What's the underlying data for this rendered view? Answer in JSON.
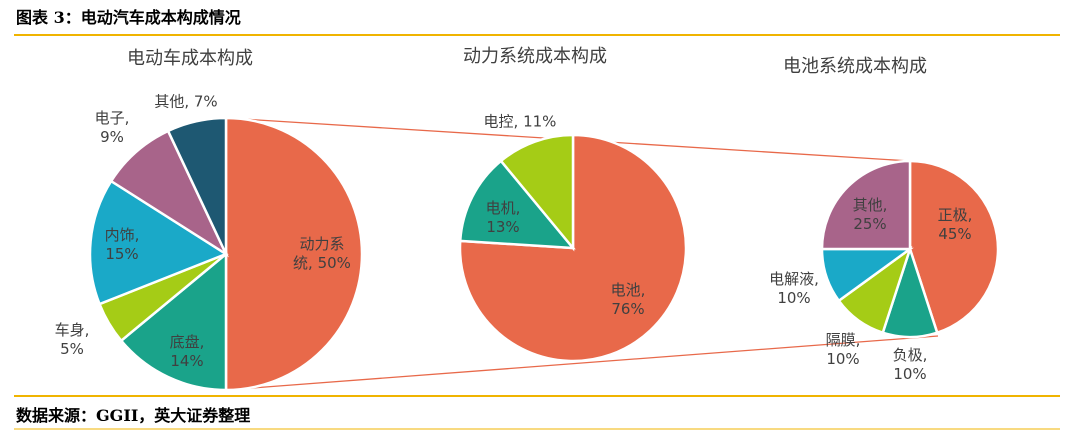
{
  "figure_title": "图表 3：电动汽车成本构成情况",
  "source": "数据来源：GGII，英大证券整理",
  "chart_data": [
    {
      "type": "pie",
      "title": "电动车成本构成",
      "values": [
        50,
        14,
        5,
        15,
        9,
        7
      ],
      "value_labels": [
        "动力系\n统, 50%",
        "底盘,\n14%",
        "车身,\n5%",
        "内饰,\n15%",
        "电子,\n9%",
        "其他, 7%"
      ],
      "colors": [
        "#e8694a",
        "#1aa38a",
        "#a5cc16",
        "#1aa9c8",
        "#a8648a",
        "#1e5872"
      ]
    },
    {
      "type": "pie",
      "title": "动力系统成本构成",
      "values": [
        76,
        13,
        11
      ],
      "value_labels": [
        "电池,\n76%",
        "电机,\n13%",
        "电控, 11%"
      ],
      "colors": [
        "#e8694a",
        "#1aa38a",
        "#a5cc16"
      ]
    },
    {
      "type": "pie",
      "title": "电池系统成本构成",
      "values": [
        45,
        10,
        10,
        10,
        25
      ],
      "value_labels": [
        "正极,\n45%",
        "负极,\n10%",
        "隔膜,\n10%",
        "电解液,\n10%",
        "其他,\n25%"
      ],
      "colors": [
        "#e8694a",
        "#1aa38a",
        "#a5cc16",
        "#1aa9c8",
        "#a8648a"
      ]
    }
  ]
}
